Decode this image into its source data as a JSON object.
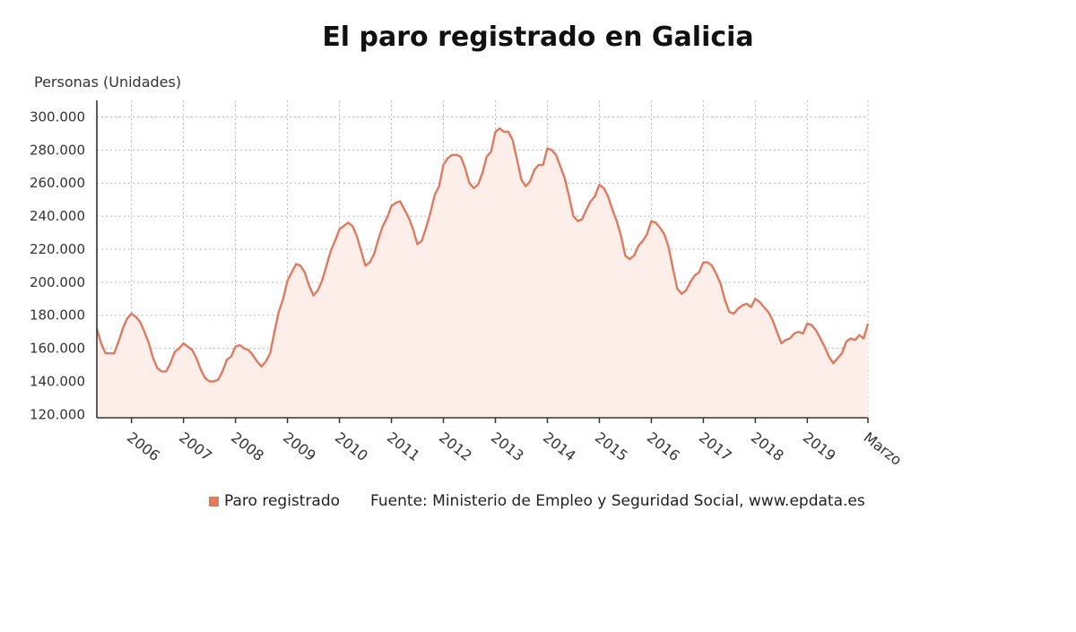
{
  "chart_data": {
    "type": "area",
    "title": "El paro registrado en Galicia",
    "ylabel": "Personas (Unidades)",
    "ylim": [
      118000,
      310000
    ],
    "y_ticks": [
      "120.000",
      "140.000",
      "160.000",
      "180.000",
      "200.000",
      "220.000",
      "240.000",
      "260.000",
      "280.000",
      "300.000"
    ],
    "y_tick_values": [
      120000,
      140000,
      160000,
      180000,
      200000,
      220000,
      240000,
      260000,
      280000,
      300000
    ],
    "x_ticks": [
      "2006",
      "2007",
      "2008",
      "2009",
      "2010",
      "2011",
      "2012",
      "2013",
      "2014",
      "2015",
      "2016",
      "2017",
      "2018",
      "2019",
      "Marzo"
    ],
    "x_tick_dates": [
      "2006-01",
      "2007-01",
      "2008-01",
      "2009-01",
      "2010-01",
      "2011-01",
      "2012-01",
      "2013-01",
      "2014-01",
      "2015-01",
      "2016-01",
      "2017-01",
      "2018-01",
      "2019-01",
      "2020-03"
    ],
    "grid": true,
    "legend": "bottom",
    "color": "#e07a5f",
    "series": [
      {
        "name": "Paro registrado",
        "points": [
          [
            "2005-05",
            172000
          ],
          [
            "2005-06",
            163000
          ],
          [
            "2005-07",
            157000
          ],
          [
            "2005-08",
            157000
          ],
          [
            "2005-09",
            157000
          ],
          [
            "2005-10",
            164000
          ],
          [
            "2005-11",
            172000
          ],
          [
            "2005-12",
            178000
          ],
          [
            "2006-01",
            181000
          ],
          [
            "2006-02",
            179000
          ],
          [
            "2006-03",
            176000
          ],
          [
            "2006-04",
            170000
          ],
          [
            "2006-05",
            163000
          ],
          [
            "2006-06",
            154000
          ],
          [
            "2006-07",
            148000
          ],
          [
            "2006-08",
            146000
          ],
          [
            "2006-09",
            146000
          ],
          [
            "2006-10",
            151000
          ],
          [
            "2006-11",
            158000
          ],
          [
            "2006-12",
            160000
          ],
          [
            "2007-01",
            163000
          ],
          [
            "2007-02",
            161000
          ],
          [
            "2007-03",
            159000
          ],
          [
            "2007-04",
            154000
          ],
          [
            "2007-05",
            147000
          ],
          [
            "2007-06",
            142000
          ],
          [
            "2007-07",
            140000
          ],
          [
            "2007-08",
            140000
          ],
          [
            "2007-09",
            141000
          ],
          [
            "2007-10",
            146000
          ],
          [
            "2007-11",
            153000
          ],
          [
            "2007-12",
            155000
          ],
          [
            "2008-01",
            161000
          ],
          [
            "2008-02",
            162000
          ],
          [
            "2008-03",
            160000
          ],
          [
            "2008-04",
            159000
          ],
          [
            "2008-05",
            156000
          ],
          [
            "2008-06",
            152000
          ],
          [
            "2008-07",
            149000
          ],
          [
            "2008-08",
            152000
          ],
          [
            "2008-09",
            157000
          ],
          [
            "2008-10",
            170000
          ],
          [
            "2008-11",
            182000
          ],
          [
            "2008-12",
            190000
          ],
          [
            "2009-01",
            201000
          ],
          [
            "2009-02",
            206000
          ],
          [
            "2009-03",
            211000
          ],
          [
            "2009-04",
            210000
          ],
          [
            "2009-05",
            206000
          ],
          [
            "2009-06",
            198000
          ],
          [
            "2009-07",
            192000
          ],
          [
            "2009-08",
            195000
          ],
          [
            "2009-09",
            201000
          ],
          [
            "2009-10",
            210000
          ],
          [
            "2009-11",
            219000
          ],
          [
            "2009-12",
            225000
          ],
          [
            "2010-01",
            232000
          ],
          [
            "2010-02",
            234000
          ],
          [
            "2010-03",
            236000
          ],
          [
            "2010-04",
            234000
          ],
          [
            "2010-05",
            228000
          ],
          [
            "2010-06",
            219000
          ],
          [
            "2010-07",
            210000
          ],
          [
            "2010-08",
            212000
          ],
          [
            "2010-09",
            217000
          ],
          [
            "2010-10",
            226000
          ],
          [
            "2010-11",
            234000
          ],
          [
            "2010-12",
            239000
          ],
          [
            "2011-01",
            246000
          ],
          [
            "2011-02",
            248000
          ],
          [
            "2011-03",
            249000
          ],
          [
            "2011-04",
            244000
          ],
          [
            "2011-05",
            239000
          ],
          [
            "2011-06",
            232000
          ],
          [
            "2011-07",
            223000
          ],
          [
            "2011-08",
            225000
          ],
          [
            "2011-09",
            233000
          ],
          [
            "2011-10",
            242000
          ],
          [
            "2011-11",
            253000
          ],
          [
            "2011-12",
            258000
          ],
          [
            "2012-01",
            271000
          ],
          [
            "2012-02",
            275000
          ],
          [
            "2012-03",
            277000
          ],
          [
            "2012-04",
            277000
          ],
          [
            "2012-05",
            276000
          ],
          [
            "2012-06",
            269000
          ],
          [
            "2012-07",
            260000
          ],
          [
            "2012-08",
            257000
          ],
          [
            "2012-09",
            259000
          ],
          [
            "2012-10",
            266000
          ],
          [
            "2012-11",
            276000
          ],
          [
            "2012-12",
            279000
          ],
          [
            "2013-01",
            291000
          ],
          [
            "2013-02",
            293000
          ],
          [
            "2013-03",
            291000
          ],
          [
            "2013-04",
            291000
          ],
          [
            "2013-05",
            286000
          ],
          [
            "2013-06",
            274000
          ],
          [
            "2013-07",
            262000
          ],
          [
            "2013-08",
            258000
          ],
          [
            "2013-09",
            261000
          ],
          [
            "2013-10",
            268000
          ],
          [
            "2013-11",
            271000
          ],
          [
            "2013-12",
            271000
          ],
          [
            "2014-01",
            281000
          ],
          [
            "2014-02",
            280000
          ],
          [
            "2014-03",
            277000
          ],
          [
            "2014-04",
            270000
          ],
          [
            "2014-05",
            263000
          ],
          [
            "2014-06",
            252000
          ],
          [
            "2014-07",
            240000
          ],
          [
            "2014-08",
            237000
          ],
          [
            "2014-09",
            238000
          ],
          [
            "2014-10",
            244000
          ],
          [
            "2014-11",
            249000
          ],
          [
            "2014-12",
            252000
          ],
          [
            "2015-01",
            259000
          ],
          [
            "2015-02",
            257000
          ],
          [
            "2015-03",
            252000
          ],
          [
            "2015-04",
            244000
          ],
          [
            "2015-05",
            237000
          ],
          [
            "2015-06",
            228000
          ],
          [
            "2015-07",
            216000
          ],
          [
            "2015-08",
            214000
          ],
          [
            "2015-09",
            216000
          ],
          [
            "2015-10",
            222000
          ],
          [
            "2015-11",
            225000
          ],
          [
            "2015-12",
            229000
          ],
          [
            "2016-01",
            237000
          ],
          [
            "2016-02",
            236000
          ],
          [
            "2016-03",
            233000
          ],
          [
            "2016-04",
            229000
          ],
          [
            "2016-05",
            221000
          ],
          [
            "2016-06",
            208000
          ],
          [
            "2016-07",
            196000
          ],
          [
            "2016-08",
            193000
          ],
          [
            "2016-09",
            195000
          ],
          [
            "2016-10",
            200000
          ],
          [
            "2016-11",
            204000
          ],
          [
            "2016-12",
            206000
          ],
          [
            "2017-01",
            212000
          ],
          [
            "2017-02",
            212000
          ],
          [
            "2017-03",
            210000
          ],
          [
            "2017-04",
            205000
          ],
          [
            "2017-05",
            199000
          ],
          [
            "2017-06",
            189000
          ],
          [
            "2017-07",
            182000
          ],
          [
            "2017-08",
            181000
          ],
          [
            "2017-09",
            184000
          ],
          [
            "2017-10",
            186000
          ],
          [
            "2017-11",
            187000
          ],
          [
            "2017-12",
            185000
          ],
          [
            "2018-01",
            190000
          ],
          [
            "2018-02",
            188000
          ],
          [
            "2018-03",
            185000
          ],
          [
            "2018-04",
            182000
          ],
          [
            "2018-05",
            177000
          ],
          [
            "2018-06",
            170000
          ],
          [
            "2018-07",
            163000
          ],
          [
            "2018-08",
            165000
          ],
          [
            "2018-09",
            166000
          ],
          [
            "2018-10",
            169000
          ],
          [
            "2018-11",
            170000
          ],
          [
            "2018-12",
            169000
          ],
          [
            "2019-01",
            175000
          ],
          [
            "2019-02",
            174000
          ],
          [
            "2019-03",
            171000
          ],
          [
            "2019-04",
            166000
          ],
          [
            "2019-05",
            161000
          ],
          [
            "2019-06",
            155000
          ],
          [
            "2019-07",
            151000
          ],
          [
            "2019-08",
            154000
          ],
          [
            "2019-09",
            157000
          ],
          [
            "2019-10",
            164000
          ],
          [
            "2019-11",
            166000
          ],
          [
            "2019-12",
            165000
          ],
          [
            "2020-01",
            168000
          ],
          [
            "2020-02",
            166000
          ],
          [
            "2020-03",
            175000
          ]
        ]
      }
    ],
    "source": "Fuente: Ministerio de Empleo y Seguridad Social, www.epdata.es"
  }
}
